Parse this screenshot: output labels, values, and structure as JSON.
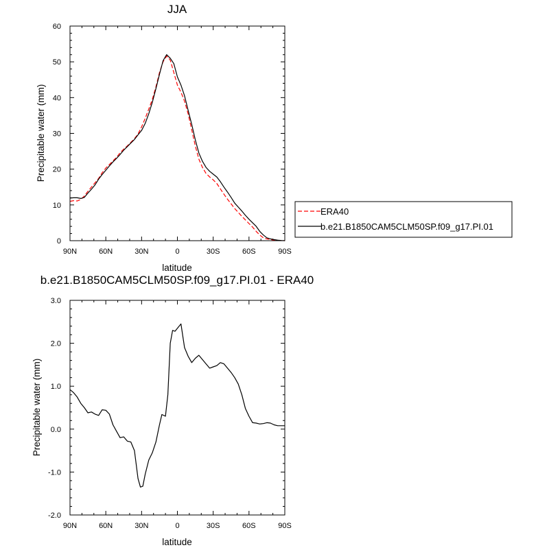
{
  "chart_data": [
    {
      "type": "line",
      "title": "JJA",
      "xlabel": "latitude",
      "ylabel": "Precipitable water (mm)",
      "ylim": [
        0,
        60
      ],
      "xlim": [
        90,
        -90
      ],
      "x_ticks": [
        {
          "value": 90,
          "label": "90N"
        },
        {
          "value": 60,
          "label": "60N"
        },
        {
          "value": 30,
          "label": "30N"
        },
        {
          "value": 0,
          "label": "0"
        },
        {
          "value": -30,
          "label": "30S"
        },
        {
          "value": -60,
          "label": "60S"
        },
        {
          "value": -90,
          "label": "90S"
        }
      ],
      "y_ticks": [
        {
          "value": 0,
          "label": "0"
        },
        {
          "value": 10,
          "label": "10"
        },
        {
          "value": 20,
          "label": "20"
        },
        {
          "value": 30,
          "label": "30"
        },
        {
          "value": 40,
          "label": "40"
        },
        {
          "value": 50,
          "label": "50"
        },
        {
          "value": 60,
          "label": "60"
        }
      ],
      "grid": false,
      "legend_position": "right",
      "series": [
        {
          "name": "ERA40",
          "color": "#ff0000",
          "dash": true,
          "x": [
            90,
            87,
            84,
            81,
            78,
            75,
            72,
            69,
            66,
            63,
            60,
            57,
            54,
            51,
            48,
            45,
            42,
            39,
            36,
            33,
            30,
            27,
            24,
            21,
            18,
            15,
            12,
            9,
            6,
            3,
            0,
            -3,
            -6,
            -9,
            -12,
            -15,
            -18,
            -21,
            -24,
            -27,
            -30,
            -33,
            -36,
            -39,
            -42,
            -45,
            -48,
            -51,
            -54,
            -57,
            -60,
            -63,
            -66,
            -69,
            -72,
            -75,
            -78,
            -81,
            -84,
            -87,
            -90
          ],
          "y": [
            11.0,
            11.2,
            11.1,
            11.5,
            12.5,
            13.8,
            15.0,
            16.2,
            17.4,
            19.0,
            20.3,
            21.3,
            22.3,
            23.3,
            24.6,
            25.6,
            26.5,
            27.5,
            28.5,
            29.8,
            31.8,
            34.2,
            36.8,
            39.5,
            43.0,
            47.0,
            50.0,
            51.6,
            50.5,
            47.0,
            43.5,
            41.5,
            39.0,
            35.5,
            31.0,
            26.5,
            22.8,
            20.5,
            18.8,
            17.8,
            17.0,
            16.0,
            14.5,
            13.0,
            11.6,
            10.3,
            9.0,
            7.9,
            6.8,
            5.8,
            4.8,
            3.8,
            2.6,
            1.6,
            0.8,
            0.5,
            0.3,
            0.2,
            0.1,
            0.05,
            0.0
          ]
        },
        {
          "name": "b.e21.B1850CAM5CLM50SP.f09_g17.PI.01",
          "color": "#000000",
          "dash": false,
          "x": [
            90,
            87,
            84,
            81,
            78,
            75,
            72,
            69,
            66,
            63,
            60,
            57,
            54,
            51,
            48,
            45,
            42,
            39,
            36,
            33,
            30,
            27,
            24,
            21,
            18,
            15,
            12,
            9,
            6,
            3,
            0,
            -3,
            -6,
            -9,
            -12,
            -15,
            -18,
            -21,
            -24,
            -27,
            -30,
            -33,
            -36,
            -39,
            -42,
            -45,
            -48,
            -51,
            -54,
            -57,
            -60,
            -63,
            -66,
            -69,
            -72,
            -75,
            -78,
            -81,
            -84,
            -87,
            -90
          ],
          "y": [
            11.9,
            12.0,
            12.0,
            11.8,
            12.1,
            13.3,
            14.4,
            15.6,
            17.2,
            18.5,
            19.7,
            20.9,
            22.0,
            23.0,
            24.1,
            25.3,
            26.3,
            27.3,
            28.3,
            29.6,
            30.8,
            32.8,
            35.5,
            38.7,
            42.5,
            46.5,
            50.3,
            52.0,
            51.0,
            49.5,
            45.8,
            43.5,
            40.5,
            36.5,
            32.5,
            28.2,
            24.5,
            22.2,
            20.5,
            19.4,
            18.6,
            17.8,
            16.5,
            15.0,
            13.6,
            12.1,
            10.5,
            9.4,
            8.3,
            7.1,
            6.0,
            5.0,
            4.0,
            2.6,
            1.6,
            0.8,
            0.5,
            0.3,
            0.15,
            0.05,
            0.0
          ]
        }
      ]
    },
    {
      "type": "line",
      "title": "b.e21.B1850CAM5CLM50SP.f09_g17.PI.01 - ERA40",
      "xlabel": "latitude",
      "ylabel": "Precipitable water (mm)",
      "ylim": [
        -2.0,
        3.0
      ],
      "xlim": [
        90,
        -90
      ],
      "x_ticks": [
        {
          "value": 90,
          "label": "90N"
        },
        {
          "value": 60,
          "label": "60N"
        },
        {
          "value": 30,
          "label": "30N"
        },
        {
          "value": 0,
          "label": "0"
        },
        {
          "value": -30,
          "label": "30S"
        },
        {
          "value": -60,
          "label": "60S"
        },
        {
          "value": -90,
          "label": "90S"
        }
      ],
      "y_ticks": [
        {
          "value": -2.0,
          "label": "-2.0"
        },
        {
          "value": -1.0,
          "label": "-1.0"
        },
        {
          "value": 0.0,
          "label": "0.0"
        },
        {
          "value": 1.0,
          "label": "1.0"
        },
        {
          "value": 2.0,
          "label": "2.0"
        },
        {
          "value": 3.0,
          "label": "3.0"
        }
      ],
      "grid": false,
      "series": [
        {
          "color": "#000000",
          "dash": false,
          "x": [
            90,
            87,
            84,
            81,
            78,
            75,
            72,
            69,
            66,
            63,
            60,
            57,
            54,
            51,
            48,
            45,
            42,
            39,
            36,
            33,
            31,
            29,
            27,
            24,
            21,
            18,
            15,
            13,
            10,
            8,
            6,
            4,
            2,
            0,
            -3,
            -6,
            -9,
            -12,
            -15,
            -18,
            -21,
            -24,
            -27,
            -30,
            -33,
            -36,
            -39,
            -42,
            -45,
            -48,
            -51,
            -54,
            -57,
            -60,
            -63,
            -66,
            -69,
            -72,
            -75,
            -78,
            -81,
            -84,
            -87,
            -90
          ],
          "y": [
            0.92,
            0.85,
            0.75,
            0.6,
            0.5,
            0.38,
            0.4,
            0.35,
            0.32,
            0.45,
            0.44,
            0.35,
            0.1,
            -0.05,
            -0.2,
            -0.18,
            -0.28,
            -0.3,
            -0.5,
            -1.15,
            -1.35,
            -1.33,
            -1.05,
            -0.72,
            -0.55,
            -0.3,
            0.1,
            0.34,
            0.3,
            0.8,
            2.0,
            2.3,
            2.28,
            2.35,
            2.45,
            1.9,
            1.7,
            1.55,
            1.65,
            1.72,
            1.62,
            1.52,
            1.42,
            1.45,
            1.48,
            1.55,
            1.52,
            1.42,
            1.32,
            1.2,
            1.05,
            0.8,
            0.48,
            0.3,
            0.15,
            0.14,
            0.12,
            0.13,
            0.15,
            0.14,
            0.1,
            0.08,
            0.08,
            0.08
          ]
        }
      ]
    }
  ]
}
